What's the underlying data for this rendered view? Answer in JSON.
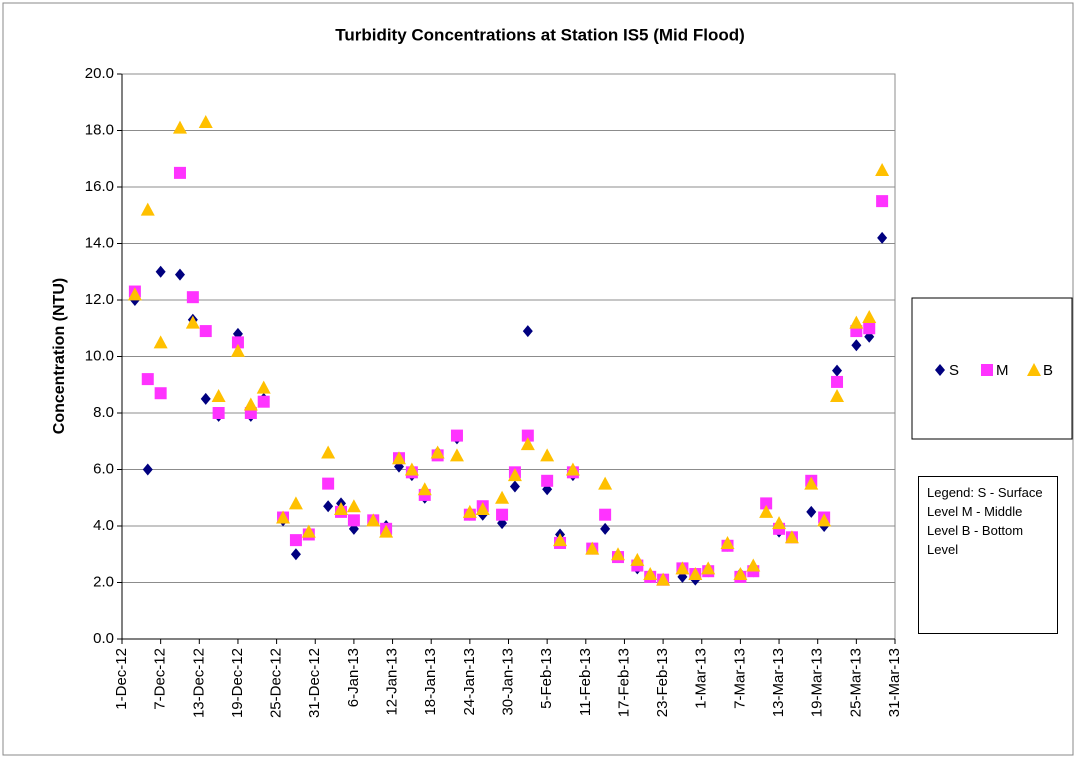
{
  "chart_data": {
    "type": "scatter",
    "title": "Turbidity Concentrations at Station IS5 (Mid Flood)",
    "y_label": "Concentration (NTU)",
    "x": [
      "2012-12-03",
      "2012-12-05",
      "2012-12-07",
      "2012-12-10",
      "2012-12-12",
      "2012-12-14",
      "2012-12-16",
      "2012-12-19",
      "2012-12-21",
      "2012-12-23",
      "2012-12-26",
      "2012-12-28",
      "2012-12-30",
      "2013-01-02",
      "2013-01-04",
      "2013-01-06",
      "2013-01-09",
      "2013-01-11",
      "2013-01-13",
      "2013-01-15",
      "2013-01-17",
      "2013-01-19",
      "2013-01-22",
      "2013-01-24",
      "2013-01-26",
      "2013-01-29",
      "2013-01-31",
      "2013-02-02",
      "2013-02-05",
      "2013-02-07",
      "2013-02-09",
      "2013-02-12",
      "2013-02-14",
      "2013-02-16",
      "2013-02-19",
      "2013-02-21",
      "2013-02-23",
      "2013-02-26",
      "2013-02-28",
      "2013-03-02",
      "2013-03-05",
      "2013-03-07",
      "2013-03-09",
      "2013-03-11",
      "2013-03-13",
      "2013-03-15",
      "2013-03-18",
      "2013-03-20",
      "2013-03-22",
      "2013-03-25",
      "2013-03-27",
      "2013-03-29"
    ],
    "series": [
      {
        "name": "S",
        "color": "#00007f",
        "marker": "diamond",
        "values": [
          12.0,
          6.0,
          13.0,
          12.9,
          11.3,
          8.5,
          7.9,
          10.8,
          7.9,
          8.5,
          4.2,
          3.0,
          3.7,
          4.7,
          4.8,
          3.9,
          4.2,
          4.0,
          6.1,
          5.8,
          5.0,
          6.6,
          7.1,
          4.4,
          4.4,
          4.1,
          5.4,
          10.9,
          5.3,
          3.7,
          5.8,
          3.2,
          3.9,
          2.9,
          2.5,
          2.2,
          2.1,
          2.2,
          2.1,
          2.4,
          3.3,
          2.3,
          2.4,
          4.7,
          3.8,
          3.6,
          4.5,
          4.0,
          9.5,
          10.4,
          10.7,
          14.2
        ]
      },
      {
        "name": "M",
        "color": "#ff33ff",
        "marker": "square",
        "values": [
          12.3,
          9.2,
          8.7,
          16.5,
          12.1,
          10.9,
          8.0,
          10.5,
          8.0,
          8.4,
          4.3,
          3.5,
          3.7,
          5.5,
          4.5,
          4.2,
          4.2,
          3.9,
          6.4,
          5.9,
          5.1,
          6.5,
          7.2,
          4.4,
          4.7,
          4.4,
          5.9,
          7.2,
          5.6,
          3.4,
          5.9,
          3.2,
          4.4,
          2.9,
          2.6,
          2.2,
          2.1,
          2.5,
          2.3,
          2.4,
          3.3,
          2.2,
          2.4,
          4.8,
          3.9,
          3.6,
          5.6,
          4.3,
          9.1,
          10.9,
          11.0,
          15.5
        ]
      },
      {
        "name": "B",
        "color": "#ffc000",
        "marker": "triangle",
        "values": [
          12.2,
          15.2,
          10.5,
          18.1,
          11.2,
          18.3,
          8.6,
          10.2,
          8.3,
          8.9,
          4.3,
          4.8,
          3.8,
          6.6,
          4.6,
          4.7,
          4.2,
          3.8,
          6.4,
          6.0,
          5.3,
          6.6,
          6.5,
          4.5,
          4.6,
          5.0,
          5.8,
          6.9,
          6.5,
          3.5,
          6.0,
          3.2,
          5.5,
          3.0,
          2.8,
          2.3,
          2.1,
          2.5,
          2.3,
          2.5,
          3.4,
          2.3,
          2.6,
          4.5,
          4.1,
          3.6,
          5.5,
          4.2,
          8.6,
          11.2,
          11.4,
          16.6
        ]
      }
    ],
    "xlim": [
      "2012-12-01",
      "2013-03-31"
    ],
    "xticks": [
      {
        "value": "2012-12-01",
        "label": "1-Dec-12"
      },
      {
        "value": "2012-12-07",
        "label": "7-Dec-12"
      },
      {
        "value": "2012-12-13",
        "label": "13-Dec-12"
      },
      {
        "value": "2012-12-19",
        "label": "19-Dec-12"
      },
      {
        "value": "2012-12-25",
        "label": "25-Dec-12"
      },
      {
        "value": "2012-12-31",
        "label": "31-Dec-12"
      },
      {
        "value": "2013-01-06",
        "label": "6-Jan-13"
      },
      {
        "value": "2013-01-12",
        "label": "12-Jan-13"
      },
      {
        "value": "2013-01-18",
        "label": "18-Jan-13"
      },
      {
        "value": "2013-01-24",
        "label": "24-Jan-13"
      },
      {
        "value": "2013-01-30",
        "label": "30-Jan-13"
      },
      {
        "value": "2013-02-05",
        "label": "5-Feb-13"
      },
      {
        "value": "2013-02-11",
        "label": "11-Feb-13"
      },
      {
        "value": "2013-02-17",
        "label": "17-Feb-13"
      },
      {
        "value": "2013-02-23",
        "label": "23-Feb-13"
      },
      {
        "value": "2013-03-01",
        "label": "1-Mar-13"
      },
      {
        "value": "2013-03-07",
        "label": "7-Mar-13"
      },
      {
        "value": "2013-03-13",
        "label": "13-Mar-13"
      },
      {
        "value": "2013-03-19",
        "label": "19-Mar-13"
      },
      {
        "value": "2013-03-25",
        "label": "25-Mar-13"
      },
      {
        "value": "2013-03-31",
        "label": "31-Mar-13"
      }
    ],
    "ylim": [
      0,
      20
    ],
    "yticks": [
      {
        "value": 0,
        "label": "0.0"
      },
      {
        "value": 2,
        "label": "2.0"
      },
      {
        "value": 4,
        "label": "4.0"
      },
      {
        "value": 6,
        "label": "6.0"
      },
      {
        "value": 8,
        "label": "8.0"
      },
      {
        "value": 10,
        "label": "10.0"
      },
      {
        "value": 12,
        "label": "12.0"
      },
      {
        "value": 14,
        "label": "14.0"
      },
      {
        "value": 16,
        "label": "16.0"
      },
      {
        "value": 18,
        "label": "18.0"
      },
      {
        "value": 20,
        "label": "20.0"
      }
    ],
    "grid": true,
    "legend": "right",
    "note": "Legend: S - Surface Level M - Middle Level B - Bottom Level"
  }
}
